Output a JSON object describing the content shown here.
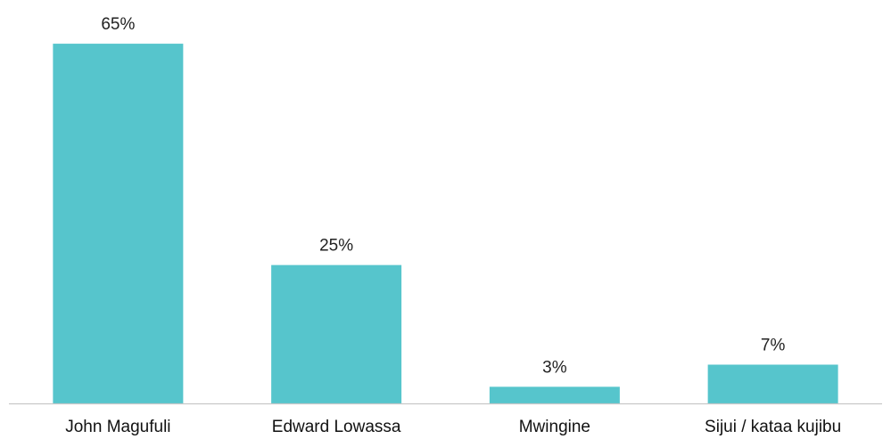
{
  "chart_data": {
    "type": "bar",
    "categories": [
      "John Magufuli",
      "Edward Lowassa",
      "Mwingine",
      "Sijui / kataa kujibu"
    ],
    "values": [
      65,
      25,
      3,
      7
    ],
    "data_labels": [
      "65%",
      "25%",
      "3%",
      "7%"
    ],
    "value_unit": "%",
    "ylim": [
      0,
      70
    ],
    "grid": false,
    "legend": "none",
    "bar_color": "#56C5CC",
    "axis_color": "#C8C8C8"
  }
}
